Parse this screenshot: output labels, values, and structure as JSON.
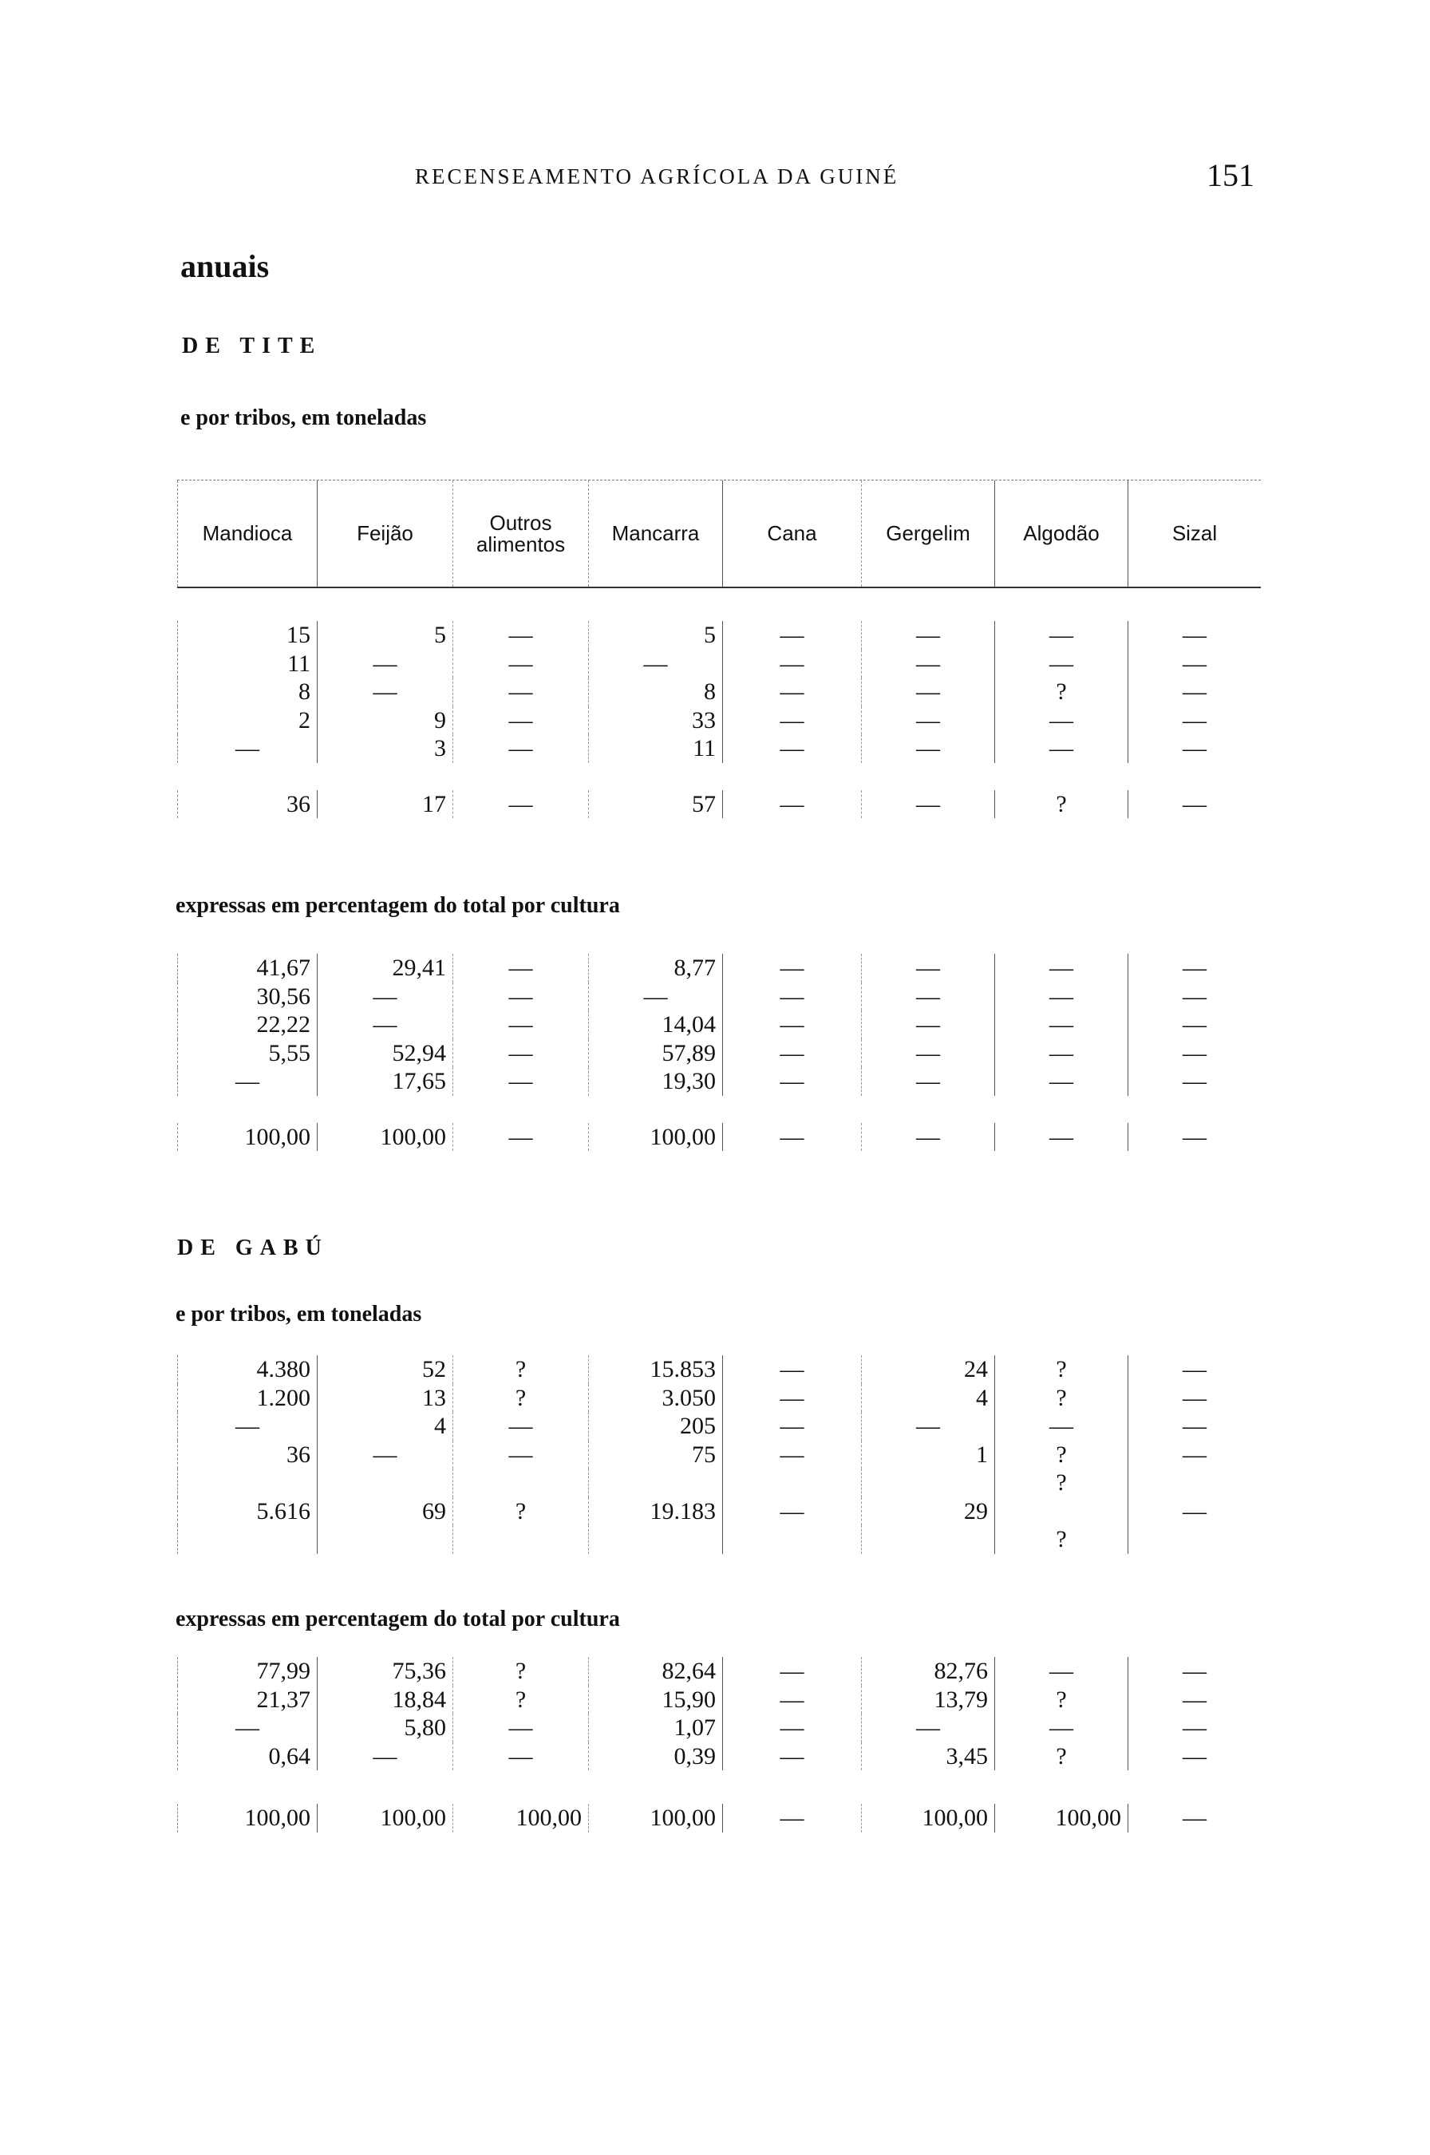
{
  "page": {
    "running_head": "RECENSEAMENTO AGRÍCOLA DA GUINÉ",
    "page_number": "151",
    "heading": "anuais"
  },
  "columns": [
    "Mandioca",
    "Feijão",
    "Outros alimentos",
    "Mancarra",
    "Cana",
    "Gergelim",
    "Algodão",
    "Sizal"
  ],
  "tite": {
    "title": "DE TITE",
    "tons_caption": "e por tribos, em toneladas",
    "tons_rows": [
      [
        "15",
        "5",
        "—",
        "5",
        "—",
        "—",
        "—",
        "—"
      ],
      [
        "11",
        "—",
        "—",
        "—",
        "—",
        "—",
        "—",
        "—"
      ],
      [
        "8",
        "—",
        "—",
        "8",
        "—",
        "—",
        "?",
        "—"
      ],
      [
        "2",
        "9",
        "—",
        "33",
        "—",
        "—",
        "—",
        "—"
      ],
      [
        "—",
        "3",
        "—",
        "11",
        "—",
        "—",
        "—",
        "—"
      ]
    ],
    "tons_total": [
      "36",
      "17",
      "—",
      "57",
      "—",
      "—",
      "?",
      "—"
    ],
    "pct_caption": "expressas em percentagem do total por cultura",
    "pct_rows": [
      [
        "41,67",
        "29,41",
        "—",
        "8,77",
        "—",
        "—",
        "—",
        "—"
      ],
      [
        "30,56",
        "—",
        "—",
        "—",
        "—",
        "—",
        "—",
        "—"
      ],
      [
        "22,22",
        "—",
        "—",
        "14,04",
        "—",
        "—",
        "—",
        "—"
      ],
      [
        "5,55",
        "52,94",
        "—",
        "57,89",
        "—",
        "—",
        "—",
        "—"
      ],
      [
        "—",
        "17,65",
        "—",
        "19,30",
        "—",
        "—",
        "—",
        "—"
      ]
    ],
    "pct_total": [
      "100,00",
      "100,00",
      "—",
      "100,00",
      "—",
      "—",
      "—",
      "—"
    ]
  },
  "gabu": {
    "title": "DE GABÚ",
    "tons_caption": "e por tribos, em toneladas",
    "tons_rows": [
      [
        "4.380",
        "52",
        "?",
        "15.853",
        "—",
        "24",
        "?",
        "—"
      ],
      [
        "1.200",
        "13",
        "?",
        "3.050",
        "—",
        "4",
        "?",
        "—"
      ],
      [
        "—",
        "4",
        "—",
        "205",
        "—",
        "—",
        "—",
        "—"
      ],
      [
        "36",
        "—",
        "—",
        "75",
        "—",
        "1",
        "?",
        "—"
      ],
      [
        "",
        "",
        "",
        "",
        "",
        "",
        "?",
        ""
      ]
    ],
    "tons_total": [
      "5.616",
      "69",
      "?",
      "19.183",
      "—",
      "29",
      "",
      "—"
    ],
    "tons_after": [
      "",
      "",
      "",
      "",
      "",
      "",
      "?",
      ""
    ],
    "pct_caption": "expressas em percentagem do total por cultura",
    "pct_rows": [
      [
        "77,99",
        "75,36",
        "?",
        "82,64",
        "—",
        "82,76",
        "—",
        "—"
      ],
      [
        "21,37",
        "18,84",
        "?",
        "15,90",
        "—",
        "13,79",
        "?",
        "—"
      ],
      [
        "—",
        "5,80",
        "—",
        "1,07",
        "—",
        "—",
        "—",
        "—"
      ],
      [
        "0,64",
        "—",
        "—",
        "0,39",
        "—",
        "3,45",
        "?",
        "—"
      ]
    ],
    "pct_total": [
      "100,00",
      "100,00",
      "100,00",
      "100,00",
      "—",
      "100,00",
      "100,00",
      "—"
    ]
  }
}
